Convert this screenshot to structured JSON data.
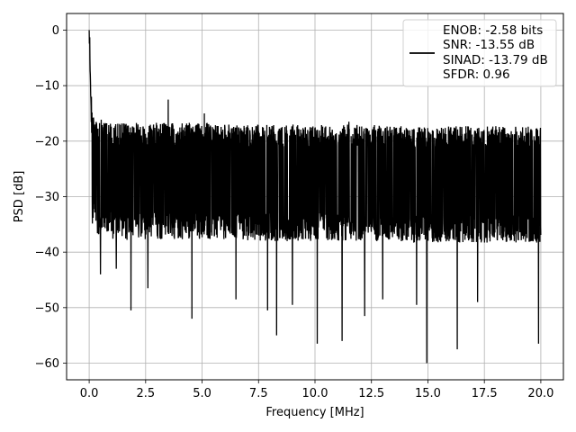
{
  "chart_data": {
    "type": "line",
    "xlabel": "Frequency [MHz]",
    "ylabel": "PSD [dB]",
    "xlim": [
      -1.0,
      21.0
    ],
    "ylim": [
      -63.0,
      3.0
    ],
    "xticks": [
      0.0,
      2.5,
      5.0,
      7.5,
      10.0,
      12.5,
      15.0,
      17.5,
      20.0
    ],
    "xtick_labels": [
      "0.0",
      "2.5",
      "5.0",
      "7.5",
      "10.0",
      "12.5",
      "15.0",
      "17.5",
      "20.0"
    ],
    "yticks": [
      0,
      -10,
      -20,
      -30,
      -40,
      -50,
      -60
    ],
    "ytick_labels": [
      "0",
      "−10",
      "−20",
      "−30",
      "−40",
      "−50",
      "−60"
    ],
    "grid": true,
    "legend_position": "top-right",
    "line_color": "#000000",
    "grid_color": "#b0b0b0",
    "legend_lines": [
      "ENOB: -2.58 bits",
      "SNR: -13.55 dB",
      "SINAD: -13.79 dB",
      "SFDR: 0.96"
    ],
    "series": [
      {
        "x": [
          0.0,
          0.02,
          0.04,
          0.06,
          0.08,
          0.1,
          0.15,
          0.2,
          0.3,
          0.4,
          0.5,
          0.6,
          0.7,
          0.8,
          0.9,
          1.0,
          1.2,
          1.5,
          1.8,
          2.0,
          2.3,
          2.5,
          3.0,
          3.3,
          3.5,
          4.0,
          4.5,
          5.0,
          5.5,
          6.0,
          6.5,
          7.0,
          7.5,
          7.9,
          8.3,
          9.0,
          9.5,
          10.0,
          10.5,
          11.0,
          11.5,
          12.0,
          12.5,
          13.0,
          13.5,
          14.0,
          14.5,
          14.95,
          15.5,
          16.0,
          16.3,
          16.8,
          17.5,
          18.0,
          18.5,
          19.0,
          19.5,
          19.9,
          20.0
        ],
        "y": [
          0.0,
          -3.0,
          -8.0,
          -12.0,
          -15.0,
          -16.0,
          -20.0,
          -22.0,
          -23.0,
          -24.0,
          -25.0,
          -25.0,
          -26.0,
          -26.0,
          -27.0,
          -27.0,
          -27.0,
          -27.0,
          -28.0,
          -27.0,
          -27.0,
          -27.0,
          -27.0,
          -27.0,
          -27.0,
          -27.0,
          -27.0,
          -27.0,
          -27.0,
          -28.0,
          -28.0,
          -28.0,
          -28.0,
          -28.0,
          -28.0,
          -28.0,
          -28.0,
          -28.0,
          -28.0,
          -28.0,
          -28.0,
          -28.0,
          -28.0,
          -28.0,
          -29.0,
          -29.0,
          -29.0,
          -29.0,
          -29.0,
          -29.0,
          -29.0,
          -29.0,
          -29.0,
          -29.0,
          -29.0,
          -29.0,
          -29.0,
          -29.0,
          -29.0
        ]
      }
    ],
    "noise_envelope": {
      "upper_db": -17.0,
      "lower_db": -38.0,
      "deep_dips": [
        {
          "x": 0.5,
          "y": -44.0
        },
        {
          "x": 1.2,
          "y": -43.0
        },
        {
          "x": 1.85,
          "y": -50.5
        },
        {
          "x": 2.6,
          "y": -46.5
        },
        {
          "x": 4.55,
          "y": -52.0
        },
        {
          "x": 6.5,
          "y": -48.5
        },
        {
          "x": 7.9,
          "y": -50.5
        },
        {
          "x": 8.3,
          "y": -55.0
        },
        {
          "x": 9.0,
          "y": -49.5
        },
        {
          "x": 10.1,
          "y": -56.5
        },
        {
          "x": 11.2,
          "y": -56.0
        },
        {
          "x": 12.2,
          "y": -51.5
        },
        {
          "x": 13.0,
          "y": -48.5
        },
        {
          "x": 14.5,
          "y": -49.5
        },
        {
          "x": 14.95,
          "y": -60.0
        },
        {
          "x": 16.3,
          "y": -57.5
        },
        {
          "x": 17.2,
          "y": -49.0
        },
        {
          "x": 19.9,
          "y": -56.5
        }
      ],
      "peaks": [
        {
          "x": 0.0,
          "y": 0.0
        },
        {
          "x": 0.05,
          "y": -8.0
        },
        {
          "x": 0.1,
          "y": -12.0
        },
        {
          "x": 3.5,
          "y": -12.5
        },
        {
          "x": 5.1,
          "y": -15.0
        },
        {
          "x": 11.5,
          "y": -16.5
        },
        {
          "x": 19.6,
          "y": -18.0
        }
      ]
    }
  }
}
